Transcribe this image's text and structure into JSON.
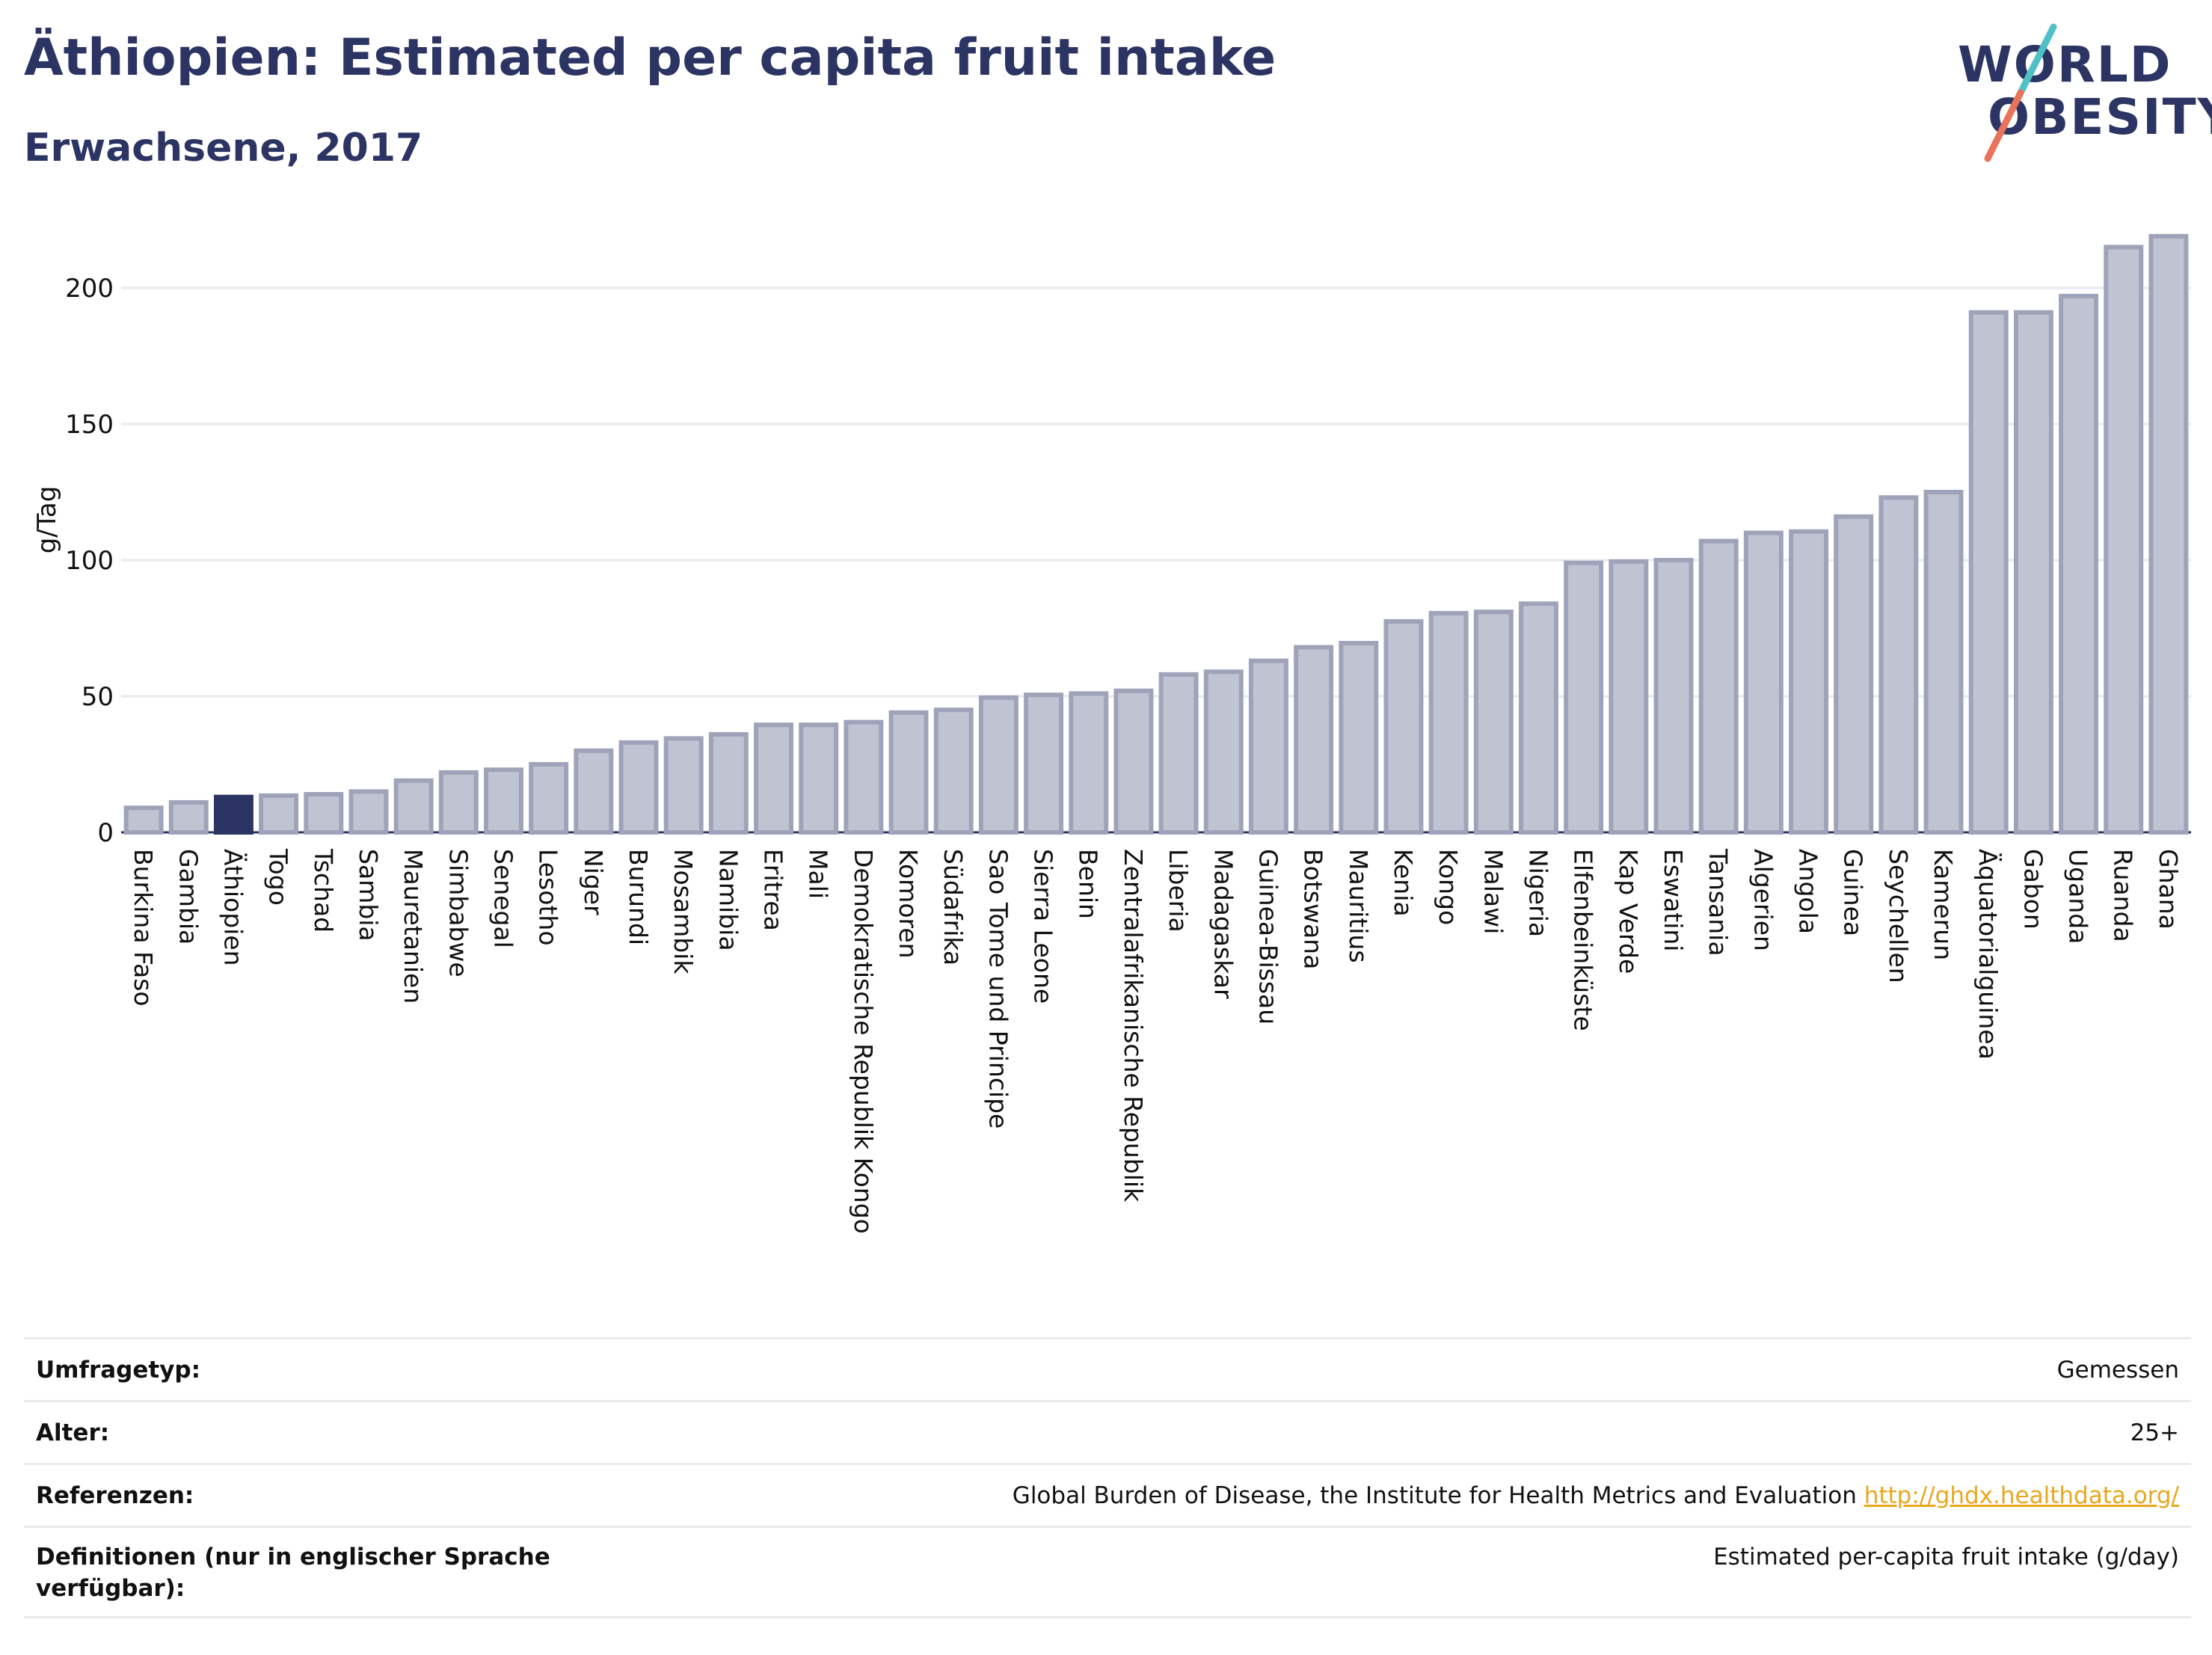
{
  "header": {
    "title": "Äthiopien: Estimated per capita fruit intake",
    "subtitle": "Erwachsene, 2017"
  },
  "logo": {
    "line1": "WORLD",
    "line2": "OBESITY",
    "slash_colors": [
      "#4fc0c5",
      "#e8735a"
    ]
  },
  "colors": {
    "bar": "#c0c4d2",
    "bar_border": "#9ea3b9",
    "highlight": "#2c3463",
    "grid": "#e6e9ee",
    "text": "#2c3463"
  },
  "chart_data": {
    "type": "bar",
    "title": "",
    "ylabel": "g/Tag",
    "xlabel": "",
    "ylim": [
      0,
      225
    ],
    "yticks": [
      0,
      50,
      100,
      150,
      200
    ],
    "grid": true,
    "highlight": "Äthiopien",
    "categories": [
      "Burkina Faso",
      "Gambia",
      "Äthiopien",
      "Togo",
      "Tschad",
      "Sambia",
      "Mauretanien",
      "Simbabwe",
      "Senegal",
      "Lesotho",
      "Niger",
      "Burundi",
      "Mosambik",
      "Namibia",
      "Eritrea",
      "Mali",
      "Demokratische Republik Kongo",
      "Komoren",
      "Südafrika",
      "Sao Tome und Principe",
      "Sierra Leone",
      "Benin",
      "Zentralafrikanische Republik",
      "Liberia",
      "Madagaskar",
      "Guinea-Bissau",
      "Botswana",
      "Mauritius",
      "Kenia",
      "Kongo",
      "Malawi",
      "Nigeria",
      "Elfenbeinküste",
      "Kap Verde",
      "Eswatini",
      "Tansania",
      "Algerien",
      "Angola",
      "Guinea",
      "Seychellen",
      "Kamerun",
      "Äquatorialguinea",
      "Gabon",
      "Uganda",
      "Ruanda",
      "Ghana"
    ],
    "values": [
      9,
      11,
      13,
      13.5,
      14,
      15,
      19,
      22,
      23,
      25,
      30,
      33,
      34.5,
      36,
      39.5,
      39.5,
      40.5,
      44,
      45,
      49.5,
      50.5,
      51,
      52,
      58,
      59,
      63,
      68,
      69.5,
      77.5,
      80.5,
      81,
      84,
      99,
      99.5,
      100,
      107,
      110,
      110.5,
      116,
      123,
      125,
      191,
      191,
      197,
      215,
      219
    ]
  },
  "info": {
    "rows": [
      {
        "label": "Umfragetyp:",
        "value": "Gemessen"
      },
      {
        "label": "Alter:",
        "value": "25+"
      },
      {
        "label": "Referenzen:",
        "value": "Global Burden of Disease, the Institute for Health Metrics and Evaluation",
        "link": "http://ghdx.healthdata.org/"
      },
      {
        "label": "Definitionen (nur in englischer Sprache verfügbar):",
        "value": "Estimated per-capita fruit intake (g/day)"
      }
    ]
  }
}
